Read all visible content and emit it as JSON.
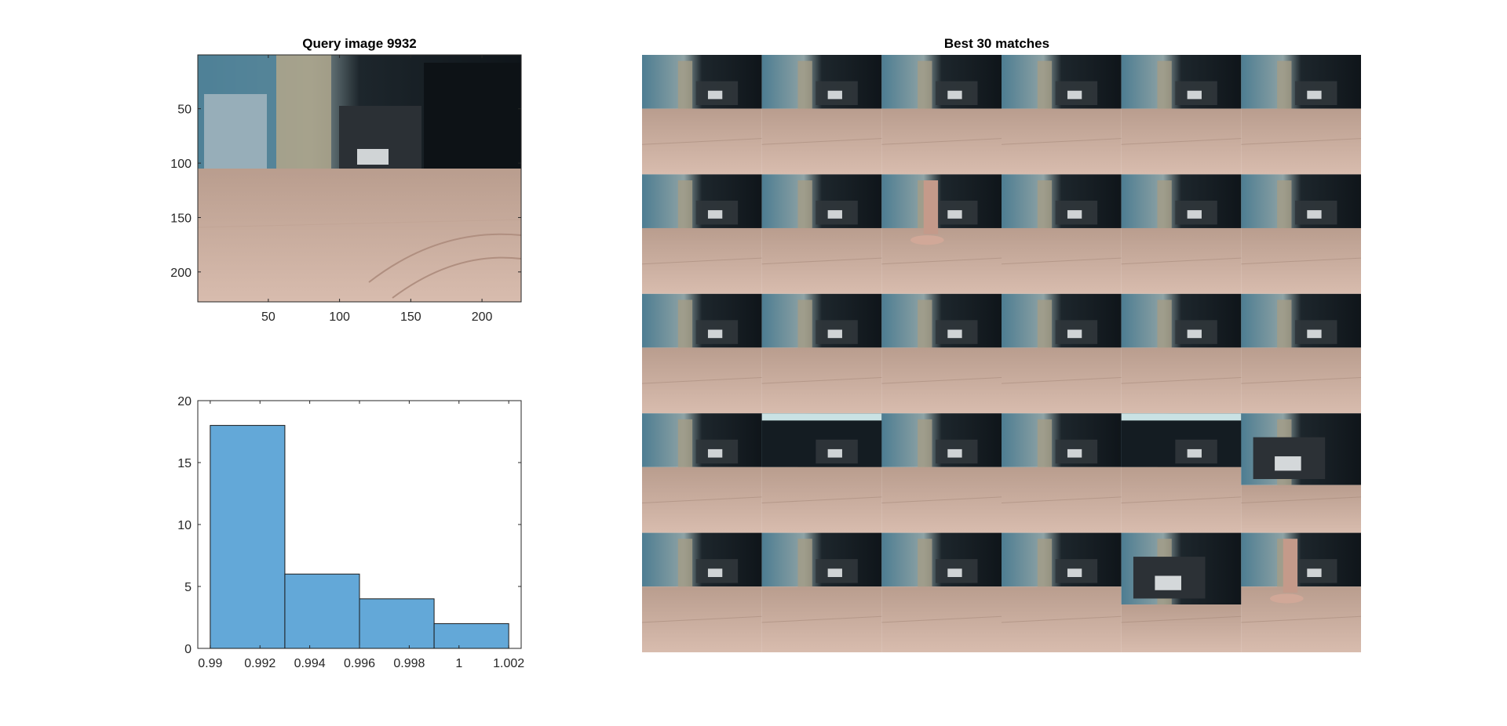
{
  "figure": {
    "query_title": "Query image 9932",
    "matches_title": "Best 30 matches"
  },
  "colors": {
    "bar_fill": "#63a8d8",
    "bar_edge": "#1a1a1a",
    "axis": "#262626",
    "wall": "#6f8a94",
    "couch": "#141c22",
    "floor": "#c6a898",
    "floor_dark": "#a88b7c"
  },
  "chart_data": [
    {
      "type": "image",
      "title": "Query image 9932",
      "xticks": [
        50,
        100,
        150,
        200
      ],
      "yticks": [
        50,
        100,
        150,
        200
      ],
      "xlim": [
        0.5,
        227.5
      ],
      "ylim": [
        0.5,
        227.5
      ],
      "y_reversed": true
    },
    {
      "type": "bar",
      "title": "",
      "bins": [
        {
          "from": 0.99,
          "to": 0.993,
          "count": 18
        },
        {
          "from": 0.993,
          "to": 0.996,
          "count": 6
        },
        {
          "from": 0.996,
          "to": 0.999,
          "count": 4
        },
        {
          "from": 0.999,
          "to": 1.002,
          "count": 2
        }
      ],
      "xlim": [
        0.9895,
        1.0025
      ],
      "ylim": [
        0,
        20
      ],
      "xticks": [
        0.99,
        0.992,
        0.994,
        0.996,
        0.998,
        1,
        1.002
      ],
      "xtick_labels": [
        "0.99",
        "0.992",
        "0.994",
        "0.996",
        "0.998",
        "1",
        "1.002"
      ],
      "yticks": [
        0,
        5,
        10,
        15,
        20
      ]
    },
    {
      "type": "image",
      "title": "Best 30 matches",
      "rows": 5,
      "cols": 6,
      "tiles": [
        "floor",
        "floor",
        "floor",
        "floor",
        "floor",
        "floor",
        "floor",
        "floor",
        "feet",
        "floor",
        "floor",
        "floor",
        "floor",
        "floor",
        "floor",
        "floor",
        "floor",
        "floor",
        "floor",
        "couch",
        "floor",
        "floor",
        "couch",
        "box",
        "floor",
        "floor",
        "floor",
        "floor",
        "box",
        "feet"
      ]
    }
  ]
}
